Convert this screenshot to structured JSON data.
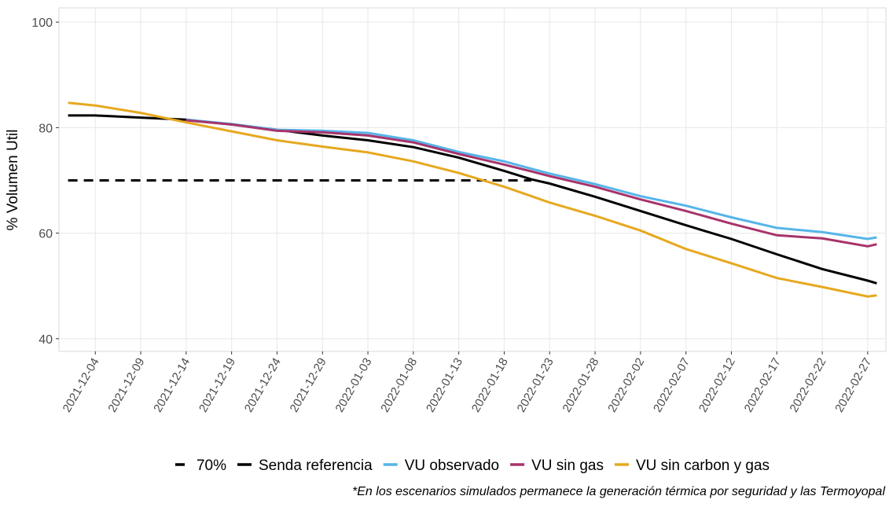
{
  "chart_data": {
    "type": "line",
    "y_label": "% Volumen Util",
    "note": "*En los escenarios simulados permanece la generación térmica por seguridad y las Termoyopal",
    "x": [
      "2021-12-01",
      "2021-12-04",
      "2021-12-09",
      "2021-12-14",
      "2021-12-19",
      "2021-12-24",
      "2021-12-29",
      "2022-01-03",
      "2022-01-08",
      "2022-01-13",
      "2022-01-18",
      "2022-01-21",
      "2022-01-23",
      "2022-01-28",
      "2022-02-02",
      "2022-02-07",
      "2022-02-12",
      "2022-02-17",
      "2022-02-22",
      "2022-02-27",
      "2022-02-28"
    ],
    "xlim": [
      "2021-11-30",
      "2022-03-01"
    ],
    "xticks": [
      "2021-12-04",
      "2021-12-09",
      "2021-12-14",
      "2021-12-19",
      "2021-12-24",
      "2021-12-29",
      "2022-01-03",
      "2022-01-08",
      "2022-01-13",
      "2022-01-18",
      "2022-01-23",
      "2022-01-28",
      "2022-02-02",
      "2022-02-07",
      "2022-02-12",
      "2022-02-17",
      "2022-02-22",
      "2022-02-27"
    ],
    "ylim": [
      37.6,
      102.7
    ],
    "yticks": [
      40,
      60,
      80,
      100
    ],
    "grid": true,
    "legend": "bottom",
    "series": [
      {
        "name": "70%",
        "color": "#000000",
        "dashed": true,
        "values": [
          70,
          70,
          70,
          70,
          70,
          70,
          70,
          70,
          70,
          70,
          70,
          70,
          null,
          null,
          null,
          null,
          null,
          null,
          null,
          null,
          null
        ]
      },
      {
        "name": "Senda referencia",
        "color": "#000000",
        "values": [
          82.3,
          82.3,
          81.9,
          81.5,
          80.6,
          79.6,
          78.5,
          77.6,
          76.3,
          74.3,
          71.8,
          70.2,
          69.4,
          66.9,
          64.2,
          61.5,
          58.9,
          56.0,
          53.2,
          51.0,
          50.5
        ]
      },
      {
        "name": "VU observado",
        "color": "#56b4e9",
        "values": [
          null,
          null,
          null,
          81.5,
          80.7,
          79.6,
          79.4,
          79.0,
          77.6,
          75.4,
          73.6,
          72.2,
          71.3,
          69.3,
          67.0,
          65.2,
          63.0,
          61.0,
          60.2,
          58.9,
          59.2
        ]
      },
      {
        "name": "VU sin gas",
        "color": "#a8336a",
        "values": [
          null,
          null,
          null,
          81.4,
          80.6,
          79.4,
          79.1,
          78.5,
          77.2,
          75.0,
          73.0,
          71.7,
          70.8,
          68.8,
          66.4,
          64.2,
          61.8,
          59.6,
          59.0,
          57.5,
          57.9
        ]
      },
      {
        "name": "VU sin carbon y gas",
        "color": "#e6a81f",
        "values": [
          84.7,
          84.2,
          82.8,
          81.0,
          79.3,
          77.6,
          76.4,
          75.3,
          73.6,
          71.4,
          68.8,
          67.0,
          65.8,
          63.3,
          60.5,
          57.0,
          54.3,
          51.5,
          49.8,
          48.0,
          48.2
        ]
      }
    ]
  }
}
